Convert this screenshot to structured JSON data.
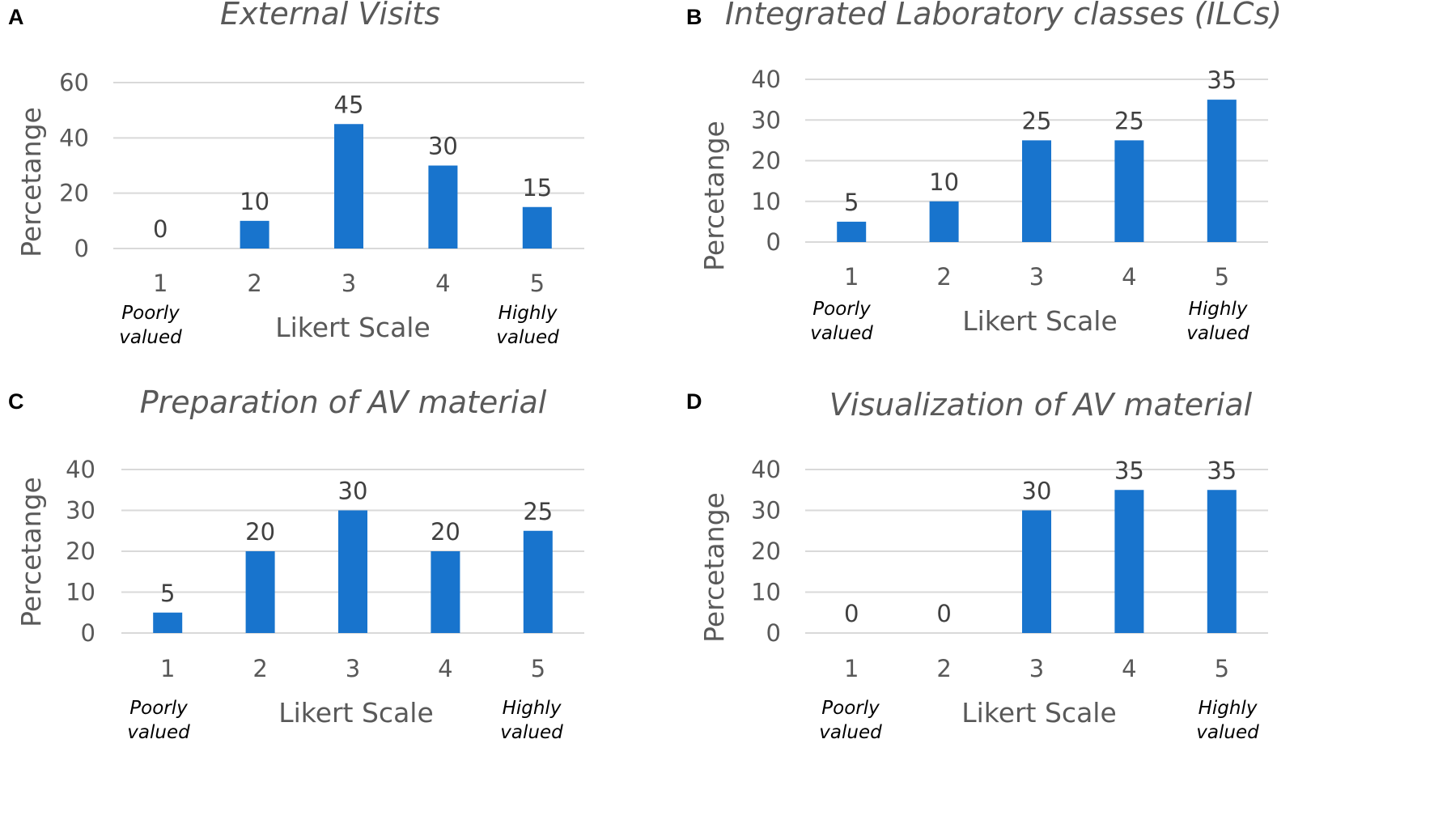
{
  "chart_data": [
    {
      "panel": "A",
      "type": "bar",
      "title": "External Visits",
      "categories": [
        "1",
        "2",
        "3",
        "4",
        "5"
      ],
      "values": [
        0,
        10,
        45,
        30,
        15
      ],
      "xlabel": "Likert Scale",
      "ylabel": "Percetange",
      "ylim": [
        0,
        60
      ],
      "yticks": [
        0,
        20,
        40,
        60
      ],
      "grid": true,
      "bar_color": "#1874CD",
      "low_label": "Poorly valued",
      "high_label": "Highly valued"
    },
    {
      "panel": "B",
      "type": "bar",
      "title": "Integrated Laboratory classes (ILCs)",
      "categories": [
        "1",
        "2",
        "3",
        "4",
        "5"
      ],
      "values": [
        5,
        10,
        25,
        25,
        35
      ],
      "xlabel": "Likert Scale",
      "ylabel": "Percetange",
      "ylim": [
        0,
        40
      ],
      "yticks": [
        0,
        10,
        20,
        30,
        40
      ],
      "grid": true,
      "bar_color": "#1874CD",
      "low_label": "Poorly valued",
      "high_label": "Highly valued"
    },
    {
      "panel": "C",
      "type": "bar",
      "title": "Preparation of AV material",
      "categories": [
        "1",
        "2",
        "3",
        "4",
        "5"
      ],
      "values": [
        5,
        20,
        30,
        20,
        25
      ],
      "xlabel": "Likert Scale",
      "ylabel": "Percetange",
      "ylim": [
        0,
        40
      ],
      "yticks": [
        0,
        10,
        20,
        30,
        40
      ],
      "grid": true,
      "bar_color": "#1874CD",
      "low_label": "Poorly valued",
      "high_label": "Highly valued"
    },
    {
      "panel": "D",
      "type": "bar",
      "title": "Visualization of AV material",
      "categories": [
        "1",
        "2",
        "3",
        "4",
        "5"
      ],
      "values": [
        0,
        0,
        30,
        35,
        35
      ],
      "xlabel": "Likert Scale",
      "ylabel": "Percetange",
      "ylim": [
        0,
        40
      ],
      "yticks": [
        0,
        10,
        20,
        30,
        40
      ],
      "grid": true,
      "bar_color": "#1874CD",
      "low_label": "Poorly valued",
      "high_label": "Highly valued"
    }
  ]
}
